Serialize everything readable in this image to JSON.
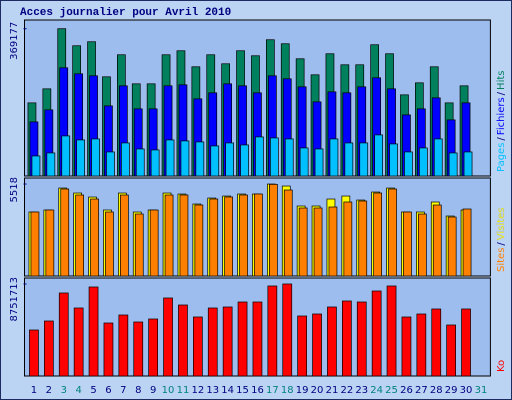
{
  "chart_data": [
    {
      "type": "bar",
      "title": "Acces journalier pour Avril 2010",
      "ylim": [
        0,
        386000
      ],
      "yticks": [
        369177
      ],
      "legend_separator": "/",
      "series": [
        {
          "name": "Hits",
          "color": "#00805c",
          "values": [
            183333,
            218499,
            369177,
            326483,
            336524,
            248630,
            303885,
            231050,
            231050,
            303885,
            313930,
            273745,
            303885,
            281283,
            313930,
            301373,
            341546,
            331501,
            293838,
            253655,
            306396,
            278772,
            278772,
            328999,
            306396,
            203427,
            233561,
            273745,
            183333,
            226026,
            null
          ]
        },
        {
          "name": "Fichiers",
          "color": "#0000ff",
          "values": [
            135617,
            165753,
            271228,
            256160,
            251142,
            175800,
            226028,
            168265,
            168265,
            226028,
            228540,
            193380,
            208450,
            231050,
            226028,
            208450,
            251142,
            243600,
            223515,
            185845,
            210960,
            208450,
            223515,
            246120,
            218490,
            153200,
            168265,
            195890,
            140640,
            183335,
            null
          ]
        },
        {
          "name": "Pages",
          "color": "#00c0ff",
          "values": [
            50228,
            57762,
            100456,
            90410,
            92922,
            60274,
            82876,
            67808,
            65296,
            90410,
            87899,
            85388,
            75342,
            82876,
            77853,
            97945,
            95433,
            92922,
            70320,
            67808,
            92922,
            82876,
            82876,
            102967,
            80365,
            60274,
            70320,
            92922,
            57762,
            60274,
            null
          ]
        }
      ]
    },
    {
      "type": "bar",
      "ylim": [
        0,
        5760
      ],
      "yticks": [
        5518
      ],
      "legend_separator": "/",
      "series": [
        {
          "name": "Visites",
          "color": "#ffff00",
          "values": [
            3839,
            3959,
            5278,
            4978,
            4738,
            3959,
            4978,
            3839,
            3959,
            4978,
            4918,
            4319,
            4678,
            4798,
            4918,
            4918,
            5518,
            5398,
            4199,
            4199,
            4618,
            4798,
            4558,
            5038,
            5278,
            3839,
            3839,
            4439,
            3599,
            3959,
            null
          ]
        },
        {
          "name": "Sites",
          "color": "#ff8000",
          "values": [
            3840,
            3960,
            5220,
            4860,
            4620,
            3840,
            4860,
            3720,
            3960,
            4860,
            4860,
            4260,
            4620,
            4740,
            4860,
            4920,
            5500,
            5160,
            4080,
            4080,
            4140,
            4440,
            4500,
            4980,
            5220,
            3840,
            3720,
            4260,
            3540,
            4020,
            null
          ]
        }
      ]
    },
    {
      "type": "bar",
      "ylim": [
        0,
        9130000
      ],
      "yticks": [
        8751713
      ],
      "categories": [
        "1",
        "2",
        "3",
        "4",
        "5",
        "6",
        "7",
        "8",
        "9",
        "10",
        "11",
        "12",
        "13",
        "14",
        "15",
        "16",
        "17",
        "18",
        "19",
        "20",
        "21",
        "22",
        "23",
        "24",
        "25",
        "26",
        "27",
        "28",
        "29",
        "30",
        "31"
      ],
      "highlighted_categories": [
        "3",
        "4",
        "10",
        "11",
        "17",
        "18",
        "24",
        "25",
        "31"
      ],
      "highlight_color": "#008080",
      "series": [
        {
          "name": "Ko",
          "color": "#ff0000",
          "values": [
            4375850,
            5232000,
            7895500,
            6468600,
            8466300,
            5041700,
            5802700,
            5136900,
            5422200,
            7419900,
            6754000,
            5612500,
            6468600,
            6563800,
            7039400,
            7039400,
            8561400,
            8751713,
            5707600,
            5897900,
            6563800,
            7134500,
            7039400,
            8085800,
            8561400,
            5612500,
            5897900,
            6373500,
            4851500,
            6373500,
            null
          ]
        }
      ]
    }
  ]
}
